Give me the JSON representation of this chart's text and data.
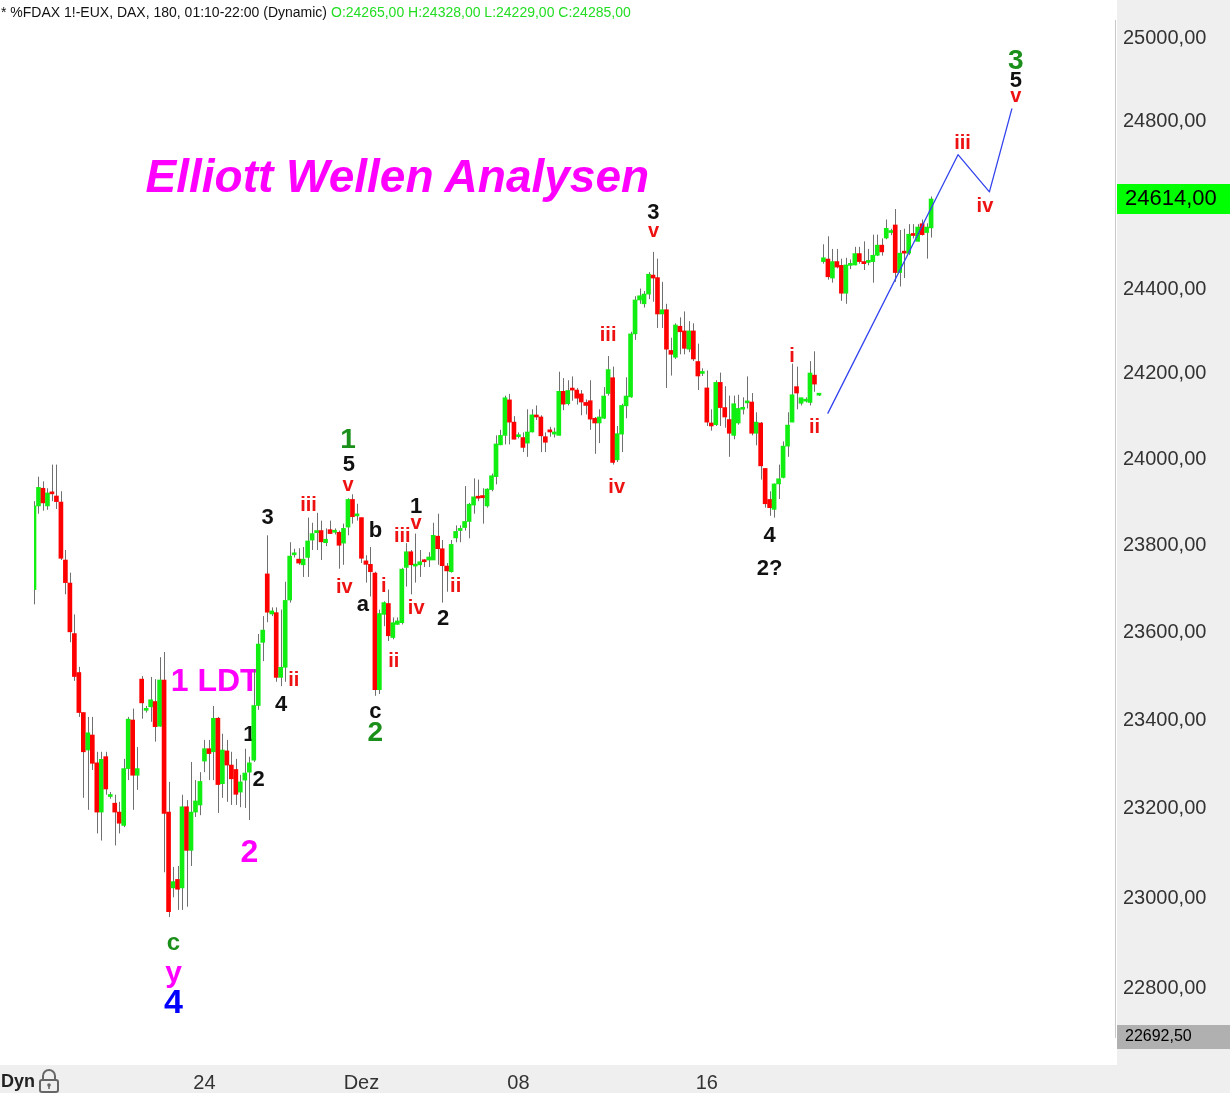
{
  "chart_data": {
    "type": "candlestick",
    "title": "* %FDAX 1!-EUX, DAX, 180, 01:10-22:00 (Dynamic)",
    "subtitle": "O:24265,00 H:24328,00 L:24229,00 C:24285,00",
    "categories": [
      null,
      null,
      null,
      null,
      null,
      null,
      null,
      null,
      null,
      null,
      null,
      null,
      null,
      null,
      null,
      null,
      null,
      null,
      null,
      null,
      null,
      null,
      null,
      null,
      null,
      null,
      null,
      null,
      null,
      null,
      null,
      null,
      null,
      null,
      null,
      null,
      null,
      null,
      "24",
      null,
      null,
      null,
      null,
      null,
      null,
      null,
      null,
      null,
      null,
      null,
      null,
      null,
      null,
      null,
      null,
      null,
      null,
      null,
      null,
      null,
      null,
      null,
      null,
      null,
      null,
      null,
      null,
      null,
      null,
      null,
      null,
      null,
      null,
      "Dez",
      null,
      null,
      null,
      null,
      null,
      null,
      null,
      null,
      null,
      null,
      null,
      null,
      null,
      null,
      null,
      null,
      null,
      null,
      null,
      null,
      null,
      null,
      null,
      null,
      null,
      null,
      null,
      null,
      null,
      null,
      null,
      null,
      null,
      null,
      "08",
      null,
      null,
      null,
      null,
      null,
      null,
      null,
      null,
      null,
      null,
      null,
      null,
      null,
      null,
      null,
      null,
      null,
      null,
      null,
      null,
      null,
      null,
      null,
      null,
      null,
      null,
      null,
      null,
      null,
      null,
      null,
      null,
      null,
      null,
      null,
      null,
      null,
      null,
      null,
      null,
      null,
      "16",
      null,
      null,
      null,
      null,
      null,
      null,
      null,
      null,
      null,
      null,
      null,
      null,
      null,
      null,
      null,
      null,
      null,
      null,
      null,
      null,
      null,
      null,
      null,
      null,
      null,
      null,
      null,
      null,
      null,
      null,
      null,
      null,
      null,
      null,
      null,
      null,
      null,
      null,
      null,
      null,
      null,
      null,
      null,
      null,
      null,
      null,
      null,
      null,
      null,
      null,
      null,
      null,
      null,
      null,
      null,
      null,
      null,
      null,
      null,
      null,
      null,
      null,
      null,
      null,
      null,
      null,
      null,
      null,
      null,
      null,
      null,
      null,
      null,
      null,
      null,
      null,
      null,
      null,
      null,
      null,
      null,
      null,
      null,
      null,
      null,
      null,
      null,
      null,
      null,
      null,
      null
    ],
    "ohlc": [
      [
        23699,
        23903,
        23665,
        23892
      ],
      [
        23892,
        23960,
        23874,
        23935
      ],
      [
        23933,
        23949,
        23881,
        23899
      ],
      [
        23892,
        23933,
        23883,
        23922
      ],
      [
        23922,
        23988,
        23903,
        23920
      ],
      [
        23915,
        23988,
        23885,
        23902
      ],
      [
        23901,
        23926,
        23767,
        23771
      ],
      [
        23767,
        23790,
        23688,
        23715
      ],
      [
        23714,
        23738,
        23578,
        23602
      ],
      [
        23598,
        23642,
        23490,
        23500
      ],
      [
        23509,
        23522,
        23408,
        23418
      ],
      [
        23418,
        23418,
        23225,
        23329
      ],
      [
        23333,
        23408,
        23198,
        23372
      ],
      [
        23367,
        23408,
        23288,
        23303
      ],
      [
        23304,
        23329,
        23145,
        23193
      ],
      [
        23193,
        23329,
        23129,
        23312
      ],
      [
        23318,
        23329,
        23232,
        23245
      ],
      [
        23228,
        23238,
        23223,
        23232
      ],
      [
        23213,
        23232,
        23118,
        23193
      ],
      [
        23193,
        23216,
        23145,
        23168
      ],
      [
        23163,
        23313,
        23159,
        23291
      ],
      [
        23291,
        23408,
        23265,
        23403
      ],
      [
        23401,
        23427,
        23198,
        23276
      ],
      [
        23276,
        23340,
        23243,
        23291
      ],
      [
        23494,
        23501,
        23404,
        23440
      ],
      [
        23423,
        23433,
        23418,
        23427
      ],
      [
        23431,
        23499,
        23397,
        23447
      ],
      [
        23443,
        23494,
        23352,
        23386
      ],
      [
        23387,
        23544,
        23386,
        23492
      ],
      [
        23492,
        23556,
        23058,
        23190
      ],
      [
        23193,
        23261,
        22958,
        22970
      ],
      [
        23023,
        23070,
        23002,
        23037
      ],
      [
        23042,
        23072,
        22974,
        23020
      ],
      [
        23023,
        23232,
        22974,
        23205
      ],
      [
        23205,
        23220,
        22981,
        23107
      ],
      [
        23107,
        23306,
        23072,
        23193
      ],
      [
        23193,
        23265,
        23182,
        23218
      ],
      [
        23209,
        23283,
        23186,
        23262
      ],
      [
        23308,
        23356,
        23283,
        23336
      ],
      [
        23336,
        23356,
        23265,
        23325
      ],
      [
        23329,
        23433,
        23265,
        23405
      ],
      [
        23405,
        23408,
        23191,
        23255
      ],
      [
        23257,
        23370,
        23225,
        23333
      ],
      [
        23331,
        23356,
        23216,
        23299
      ],
      [
        23299,
        23329,
        23209,
        23268
      ],
      [
        23289,
        23313,
        23209,
        23233
      ],
      [
        23238,
        23277,
        23204,
        23261
      ],
      [
        23265,
        23336,
        23202,
        23281
      ],
      [
        23283,
        23318,
        23175,
        23304
      ],
      [
        23310,
        23517,
        23306,
        23434
      ],
      [
        23434,
        23597,
        23424,
        23574
      ],
      [
        23578,
        23638,
        23535,
        23606
      ],
      [
        23735,
        23824,
        23624,
        23647
      ],
      [
        23643,
        23658,
        23638,
        23650
      ],
      [
        23646,
        23658,
        23488,
        23498
      ],
      [
        23498,
        23653,
        23478,
        23521
      ],
      [
        23521,
        23717,
        23488,
        23674
      ],
      [
        23675,
        23808,
        23669,
        23776
      ],
      [
        23779,
        23793,
        23773,
        23783
      ],
      [
        23769,
        23794,
        23756,
        23760
      ],
      [
        23756,
        23797,
        23728,
        23769
      ],
      [
        23773,
        23865,
        23728,
        23811
      ],
      [
        23813,
        23853,
        23790,
        23828
      ],
      [
        23830,
        23876,
        23790,
        23835
      ],
      [
        23835,
        23858,
        23767,
        23809
      ],
      [
        23807,
        23840,
        23799,
        23815
      ],
      [
        23837,
        23858,
        23828,
        23828
      ],
      [
        23831,
        23840,
        23826,
        23833
      ],
      [
        23831,
        23835,
        23747,
        23801
      ],
      [
        23806,
        23851,
        23756,
        23840
      ],
      [
        23843,
        23910,
        23824,
        23907
      ],
      [
        23907,
        23919,
        23851,
        23867
      ],
      [
        23869,
        23897,
        23858,
        23873
      ],
      [
        23865,
        23865,
        23760,
        23771
      ],
      [
        23765,
        23778,
        23715,
        23757
      ],
      [
        23757,
        23797,
        23683,
        23740
      ],
      [
        23737,
        23740,
        23456,
        23470
      ],
      [
        23470,
        23653,
        23460,
        23644
      ],
      [
        23642,
        23672,
        23615,
        23669
      ],
      [
        23667,
        23699,
        23581,
        23593
      ],
      [
        23589,
        23635,
        23585,
        23623
      ],
      [
        23619,
        23635,
        23619,
        23627
      ],
      [
        23623,
        23749,
        23619,
        23746
      ],
      [
        23750,
        23806,
        23706,
        23786
      ],
      [
        23786,
        23790,
        23688,
        23756
      ],
      [
        23753,
        23828,
        23715,
        23757
      ],
      [
        23756,
        23790,
        23728,
        23763
      ],
      [
        23767,
        23769,
        23751,
        23763
      ],
      [
        23767,
        23785,
        23751,
        23774
      ],
      [
        23767,
        23853,
        23767,
        23824
      ],
      [
        23822,
        23874,
        23756,
        23793
      ],
      [
        23793,
        23813,
        23669,
        23754
      ],
      [
        23753,
        23760,
        23694,
        23742
      ],
      [
        23740,
        23813,
        23738,
        23803
      ],
      [
        23818,
        23847,
        23808,
        23833
      ],
      [
        23835,
        23847,
        23808,
        23840
      ],
      [
        23842,
        23938,
        23835,
        23856
      ],
      [
        23856,
        23899,
        23817,
        23896
      ],
      [
        23894,
        23956,
        23874,
        23913
      ],
      [
        23913,
        23953,
        23903,
        23910
      ],
      [
        23916,
        23933,
        23851,
        23911
      ],
      [
        23892,
        23933,
        23888,
        23931
      ],
      [
        23930,
        23967,
        23926,
        23962
      ],
      [
        23960,
        24056,
        23942,
        24036
      ],
      [
        24034,
        24069,
        24033,
        24056
      ],
      [
        24056,
        24149,
        24035,
        24144
      ],
      [
        24139,
        24153,
        24035,
        24087
      ],
      [
        24087,
        24101,
        24047,
        24047
      ],
      [
        24053,
        24063,
        24049,
        24056
      ],
      [
        24051,
        24063,
        24017,
        24028
      ],
      [
        24038,
        24117,
        24006,
        24064
      ],
      [
        24064,
        24117,
        24063,
        24104
      ],
      [
        24101,
        24126,
        24092,
        24099
      ],
      [
        24099,
        24103,
        24017,
        24055
      ],
      [
        24053,
        24063,
        24017,
        24040
      ],
      [
        24069,
        24076,
        24053,
        24064
      ],
      [
        24059,
        24074,
        24051,
        24064
      ],
      [
        24056,
        24205,
        24056,
        24159
      ],
      [
        24159,
        24190,
        24115,
        24129
      ],
      [
        24130,
        24185,
        24126,
        24161
      ],
      [
        24165,
        24194,
        24137,
        24162
      ],
      [
        24162,
        24167,
        24128,
        24143
      ],
      [
        24153,
        24162,
        24103,
        24134
      ],
      [
        24133,
        24140,
        24105,
        24126
      ],
      [
        24137,
        24185,
        24069,
        24094
      ],
      [
        24096,
        24099,
        24013,
        24085
      ],
      [
        24085,
        24117,
        24038,
        24099
      ],
      [
        24096,
        24169,
        24094,
        24148
      ],
      [
        24154,
        24242,
        24149,
        24210
      ],
      [
        24191,
        24217,
        23988,
        23993
      ],
      [
        23999,
        24078,
        23994,
        24060
      ],
      [
        24059,
        24130,
        24017,
        24126
      ],
      [
        24125,
        24192,
        24096,
        24148
      ],
      [
        24146,
        24299,
        24144,
        24294
      ],
      [
        24294,
        24383,
        24280,
        24374
      ],
      [
        24374,
        24401,
        24365,
        24384
      ],
      [
        24365,
        24395,
        24356,
        24388
      ],
      [
        24388,
        24440,
        24376,
        24435
      ],
      [
        24433,
        24488,
        24370,
        24426
      ],
      [
        24427,
        24472,
        24308,
        24341
      ],
      [
        24341,
        24417,
        24308,
        24351
      ],
      [
        24351,
        24365,
        24167,
        24258
      ],
      [
        24255,
        24285,
        24196,
        24246
      ],
      [
        24239,
        24319,
        24235,
        24315
      ],
      [
        24312,
        24333,
        24246,
        24299
      ],
      [
        24301,
        24347,
        24246,
        24260
      ],
      [
        24258,
        24324,
        24251,
        24301
      ],
      [
        24301,
        24319,
        24230,
        24235
      ],
      [
        24229,
        24271,
        24162,
        24195
      ],
      [
        24201,
        24213,
        24195,
        24205
      ],
      [
        24167,
        24208,
        24078,
        24087
      ],
      [
        24085,
        24117,
        24067,
        24078
      ],
      [
        24081,
        24185,
        24078,
        24180
      ],
      [
        24180,
        24203,
        24078,
        24121
      ],
      [
        24121,
        24171,
        24074,
        24099
      ],
      [
        24093,
        24149,
        24006,
        24061
      ],
      [
        24056,
        24149,
        24047,
        24130
      ],
      [
        24085,
        24151,
        24081,
        24119
      ],
      [
        24117,
        24145,
        24105,
        24121
      ],
      [
        24132,
        24194,
        24119,
        24135
      ],
      [
        24134,
        24155,
        24056,
        24061
      ],
      [
        24061,
        24110,
        24033,
        24087
      ],
      [
        24085,
        24087,
        23953,
        23985
      ],
      [
        23979,
        23979,
        23888,
        23897
      ],
      [
        23907,
        23926,
        23869,
        23888
      ],
      [
        23884,
        23944,
        23865,
        23943
      ],
      [
        23943,
        23988,
        23908,
        23955
      ],
      [
        23958,
        24042,
        23956,
        24031
      ],
      [
        24031,
        24110,
        24006,
        24080
      ],
      [
        24087,
        24224,
        24087,
        24151
      ],
      [
        24170,
        24217,
        24117,
        24155
      ],
      [
        24131,
        24144,
        24126,
        24144
      ],
      [
        24136,
        24145,
        24133,
        24140
      ],
      [
        24133,
        24230,
        24126,
        24202
      ],
      [
        24197,
        24253,
        24158,
        24176
      ],
      [
        24150,
        24153,
        24148,
        24151
      ],
      [
        24465,
        24506,
        24460,
        24474
      ],
      [
        24471,
        24525,
        24422,
        24429
      ],
      [
        24426,
        24495,
        24415,
        24465
      ],
      [
        24465,
        24495,
        24449,
        24452
      ],
      [
        24456,
        24472,
        24372,
        24390
      ],
      [
        24390,
        24474,
        24365,
        24457
      ],
      [
        24456,
        24470,
        24447,
        24460
      ],
      [
        24457,
        24500,
        24456,
        24484
      ],
      [
        24484,
        24500,
        24460,
        24465
      ],
      [
        24465,
        24513,
        24445,
        24460
      ],
      [
        24463,
        24495,
        24456,
        24467
      ],
      [
        24465,
        24529,
        24415,
        24480
      ],
      [
        24480,
        24529,
        24478,
        24504
      ],
      [
        24504,
        24520,
        24479,
        24488
      ],
      [
        24521,
        24565,
        24518,
        24544
      ],
      [
        24534,
        24543,
        24528,
        24538
      ],
      [
        24552,
        24590,
        24417,
        24439
      ],
      [
        24439,
        24540,
        24406,
        24485
      ],
      [
        24488,
        24543,
        24426,
        24485
      ],
      [
        24485,
        24554,
        24481,
        24530
      ],
      [
        24530,
        24554,
        24520,
        24527
      ],
      [
        24513,
        24554,
        24513,
        24547
      ],
      [
        24555,
        24565,
        24527,
        24529
      ],
      [
        24534,
        24556,
        24472,
        24547
      ],
      [
        24545,
        24620,
        24522,
        24614
      ],
      null,
      null,
      null,
      null,
      null,
      null,
      null,
      null,
      null,
      null,
      null,
      null,
      null,
      null,
      null,
      null,
      null,
      null,
      null,
      null,
      null,
      null,
      null,
      null,
      null,
      null,
      null,
      null,
      null,
      null,
      null,
      null,
      null,
      null,
      null,
      null,
      null,
      null,
      null,
      null,
      null
    ],
    "colors": [
      "#11ee11",
      "#11ee11",
      "#ff0000",
      "#11ee11",
      "#ff0000",
      "#ff0000",
      "#ff0000",
      "#ff0000",
      "#ff0000",
      "#ff0000",
      "#ff0000",
      "#ff0000",
      "#11ee11",
      "#ff0000",
      "#ff0000",
      "#11ee11",
      "#ff0000",
      "#11ee11",
      "#ff0000",
      "#ff0000",
      "#11ee11",
      "#11ee11",
      "#ff0000",
      "#11ee11",
      "#ff0000",
      "#11ee11",
      "#11ee11",
      "#ff0000",
      "#11ee11",
      "#ff0000",
      "#ff0000",
      "#11ee11",
      "#ff0000",
      "#11ee11",
      "#ff0000",
      "#11ee11",
      "#11ee11",
      "#11ee11",
      "#11ee11",
      "#ff0000",
      "#11ee11",
      "#ff0000",
      "#11ee11",
      "#ff0000",
      "#ff0000",
      "#ff0000",
      "#11ee11",
      "#11ee11",
      "#11ee11",
      "#11ee11",
      "#11ee11",
      "#11ee11",
      "#ff0000",
      "#11ee11",
      "#ff0000",
      "#11ee11",
      "#11ee11",
      "#11ee11",
      "#11ee11",
      "#ff0000",
      "#11ee11",
      "#11ee11",
      "#11ee11",
      "#11ee11",
      "#ff0000",
      "#11ee11",
      "#ff0000",
      "#11ee11",
      "#ff0000",
      "#11ee11",
      "#11ee11",
      "#ff0000",
      "#11ee11",
      "#ff0000",
      "#ff0000",
      "#ff0000",
      "#ff0000",
      "#11ee11",
      "#11ee11",
      "#ff0000",
      "#11ee11",
      "#11ee11",
      "#11ee11",
      "#11ee11",
      "#ff0000",
      "#11ee11",
      "#11ee11",
      "#ff0000",
      "#11ee11",
      "#11ee11",
      "#ff0000",
      "#ff0000",
      "#ff0000",
      "#11ee11",
      "#11ee11",
      "#11ee11",
      "#11ee11",
      "#11ee11",
      "#11ee11",
      "#ff0000",
      "#ff0000",
      "#11ee11",
      "#11ee11",
      "#11ee11",
      "#11ee11",
      "#11ee11",
      "#ff0000",
      "#ff0000",
      "#11ee11",
      "#ff0000",
      "#11ee11",
      "#11ee11",
      "#ff0000",
      "#ff0000",
      "#ff0000",
      "#ff0000",
      "#11ee11",
      "#11ee11",
      "#ff0000",
      "#11ee11",
      "#ff0000",
      "#ff0000",
      "#ff0000",
      "#ff0000",
      "#ff0000",
      "#ff0000",
      "#11ee11",
      "#11ee11",
      "#11ee11",
      "#ff0000",
      "#11ee11",
      "#11ee11",
      "#11ee11",
      "#11ee11",
      "#11ee11",
      "#11ee11",
      "#11ee11",
      "#11ee11",
      "#ff0000",
      "#ff0000",
      "#11ee11",
      "#ff0000",
      "#ff0000",
      "#11ee11",
      "#ff0000",
      "#ff0000",
      "#11ee11",
      "#ff0000",
      "#ff0000",
      "#11ee11",
      "#ff0000",
      "#ff0000",
      "#11ee11",
      "#ff0000",
      "#ff0000",
      "#ff0000",
      "#11ee11",
      "#11ee11",
      "#11ee11",
      "#11ee11",
      "#ff0000",
      "#11ee11",
      "#ff0000",
      "#ff0000",
      "#ff0000",
      "#11ee11",
      "#11ee11",
      "#11ee11",
      "#11ee11",
      "#11ee11",
      "#ff0000",
      "#11ee11",
      "#11ee11",
      "#11ee11",
      "#ff0000",
      "#11ee11",
      "#11ee11",
      "#ff0000",
      "#11ee11",
      "#ff0000",
      "#ff0000",
      "#11ee11",
      "#11ee11",
      "#11ee11",
      "#ff0000",
      "#ff0000",
      "#11ee11",
      "#11ee11",
      "#11ee11",
      "#ff0000",
      "#11ee11",
      "#11ee11",
      "#ff0000",
      "#11ee11",
      "#ff0000",
      "#11ee11",
      "#ff0000",
      "#11ee11",
      "#ff0000",
      "#11ee11",
      "#11ee11",
      null,
      null,
      null,
      null,
      null,
      null,
      null,
      null,
      null,
      null,
      null,
      null,
      null,
      null,
      null,
      null,
      null,
      null,
      null,
      null,
      null,
      null,
      null,
      null,
      null,
      null,
      null,
      null,
      null,
      null,
      null,
      null,
      null,
      null,
      null,
      null,
      null,
      null,
      null,
      null,
      null
    ],
    "series": [
      {
        "type": "line",
        "color": "#3344ee",
        "values": [
          null,
          null,
          null,
          null,
          null,
          null,
          null,
          null,
          null,
          null,
          null,
          null,
          null,
          null,
          null,
          null,
          null,
          null,
          null,
          null,
          null,
          null,
          null,
          null,
          null,
          null,
          null,
          null,
          null,
          null,
          null,
          null,
          null,
          null,
          null,
          null,
          null,
          null,
          null,
          null,
          null,
          null,
          null,
          null,
          null,
          null,
          null,
          null,
          null,
          null,
          null,
          null,
          null,
          null,
          null,
          null,
          null,
          null,
          null,
          null,
          null,
          null,
          null,
          null,
          null,
          null,
          null,
          null,
          null,
          null,
          null,
          null,
          null,
          null,
          null,
          null,
          null,
          null,
          null,
          null,
          null,
          null,
          null,
          null,
          null,
          null,
          null,
          null,
          null,
          null,
          null,
          null,
          null,
          null,
          null,
          null,
          null,
          null,
          null,
          null,
          null,
          null,
          null,
          null,
          null,
          null,
          null,
          null,
          null,
          null,
          null,
          null,
          null,
          null,
          null,
          null,
          null,
          null,
          null,
          null,
          null,
          null,
          null,
          null,
          null,
          null,
          null,
          null,
          null,
          null,
          null,
          null,
          null,
          null,
          null,
          null,
          null,
          null,
          null,
          null,
          null,
          null,
          null,
          null,
          null,
          null,
          null,
          null,
          null,
          null,
          null,
          null,
          null,
          null,
          null,
          null,
          null,
          null,
          null,
          null,
          null,
          null,
          null,
          null,
          null,
          null,
          null,
          null,
          null,
          null,
          null,
          null,
          null,
          null,
          null,
          null,
          null,
          24108,
          null,
          null,
          null,
          null,
          null,
          null,
          null,
          null,
          null,
          null,
          null,
          null,
          null,
          null,
          null,
          null,
          null,
          null,
          null,
          null,
          null,
          null,
          null,
          null,
          null,
          null,
          null,
          null,
          24720,
          null,
          null,
          null,
          null,
          null,
          null,
          24631,
          null,
          null,
          null,
          null,
          24830,
          null,
          null,
          null,
          null,
          null,
          null,
          null,
          null,
          null,
          null,
          null,
          null,
          null,
          null,
          null,
          null,
          null,
          null,
          null,
          null,
          null,
          null,
          null
        ]
      }
    ],
    "ylim": [
      22692.5,
      25045
    ],
    "yticks": [
      {
        "value": 22800,
        "label": "22800,00"
      },
      {
        "value": 23000,
        "label": "23000,00"
      },
      {
        "value": 23200,
        "label": "23200,00"
      },
      {
        "value": 23400,
        "label": "23400,00"
      },
      {
        "value": 23600,
        "label": "23600,00"
      },
      {
        "value": 23800,
        "label": "23800,00"
      },
      {
        "value": 24000,
        "label": "24000,00"
      },
      {
        "value": 24200,
        "label": "24200,00"
      },
      {
        "value": 24400,
        "label": "24400,00"
      },
      {
        "value": 24800,
        "label": "24800,00"
      },
      {
        "value": 25000,
        "label": "25000,00"
      }
    ],
    "log": true,
    "marker": "none",
    "annotations": [
      "Elliott Wellen Analysen",
      "Dyn",
      "1 LDT",
      "2",
      "c",
      "y",
      "4",
      "3",
      "4",
      "1",
      "2",
      "ii",
      "iii",
      "iv",
      "1",
      "5",
      "v",
      "b",
      "a",
      "c",
      "2",
      "i",
      "ii",
      "iii",
      "iv",
      "1",
      "v",
      "ii",
      "2",
      "iii",
      "iv",
      "3",
      "v",
      "i",
      "ii",
      "4",
      "2?",
      "iii",
      "iv",
      "3",
      "5",
      "v",
      "24614,00",
      "22692,50"
    ]
  }
}
